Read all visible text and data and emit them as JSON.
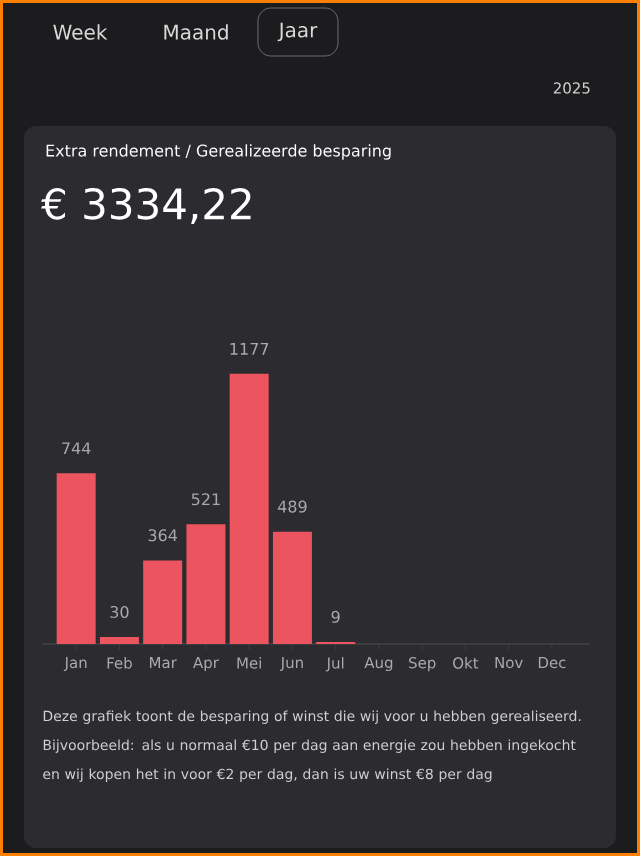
{
  "chart_data": {
    "type": "bar",
    "title": "Extra rendement / Gerealizeerde besparing",
    "subtitle": "€ 3334,22",
    "categories": [
      "Jan",
      "Feb",
      "Mar",
      "Apr",
      "Mei",
      "Jun",
      "Jul",
      "Aug",
      "Sep",
      "Okt",
      "Nov",
      "Dec"
    ],
    "values": [
      744,
      30,
      364,
      521,
      1177,
      489,
      9,
      null,
      null,
      null,
      null,
      null
    ],
    "color": "#ec5560",
    "data_labels": true,
    "annotations": [
      "Week",
      "Maand",
      "Jaar",
      "2025",
      "Deze grafiek toont de besparing of winst die wij voor u hebben gerealiseerd. Bijvoorbeeld: als u normaal €10 per dag aan energie zou hebben ingekocht en wij kopen het in voor €2 per dag, dan is uw winst €8 per dag"
    ]
  }
}
